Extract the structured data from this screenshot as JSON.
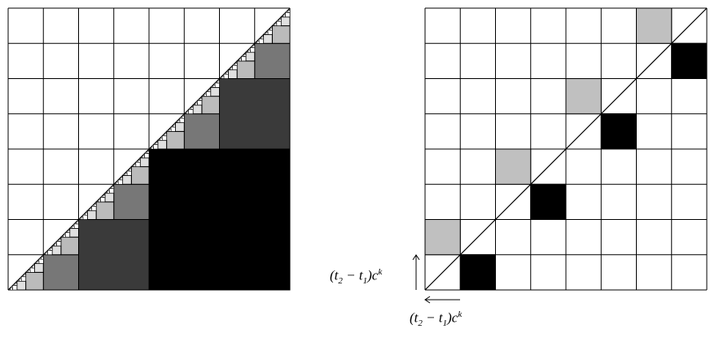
{
  "left_diagram": {
    "grid_cells": 8,
    "recursion_levels": 7,
    "level_colors": [
      "#000000",
      "#3a3a3a",
      "#777777",
      "#bbbbbb",
      "#e0e0e0",
      "#ffffff",
      "#ffffff"
    ]
  },
  "right_diagram": {
    "grid_cells": 8,
    "black_cells": [
      [
        1,
        7
      ],
      [
        3,
        5
      ],
      [
        5,
        3
      ],
      [
        7,
        1
      ]
    ],
    "gray_cells": [
      [
        0,
        6
      ],
      [
        2,
        4
      ],
      [
        4,
        2
      ],
      [
        6,
        0
      ]
    ],
    "black_color": "#000000",
    "gray_color": "#c0c0c0"
  },
  "labels": {
    "vertical_label": {
      "base": "(t",
      "sub1": "2",
      "mid": " − t",
      "sub2": "1",
      "end": ")c",
      "sup": "k"
    },
    "horizontal_label": {
      "base": "(t",
      "sub1": "2",
      "mid": " − t",
      "sub2": "1",
      "end": ")c",
      "sup": "k"
    }
  }
}
